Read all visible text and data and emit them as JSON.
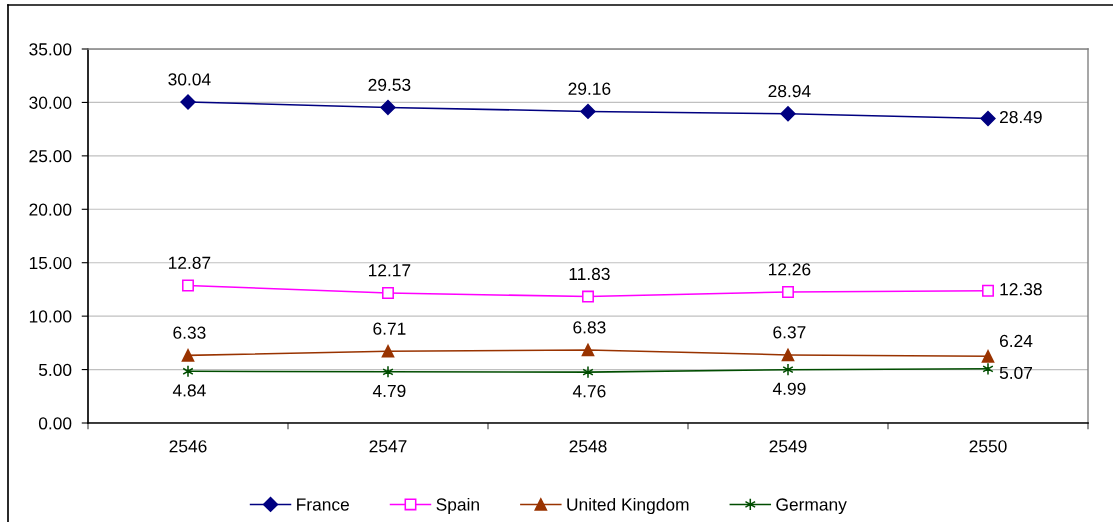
{
  "chart_data": {
    "type": "line",
    "categories": [
      "2546",
      "2547",
      "2548",
      "2549",
      "2550"
    ],
    "ylim": [
      0,
      35
    ],
    "yticks": [
      {
        "value": 0,
        "label": "0.00"
      },
      {
        "value": 5,
        "label": "5.00"
      },
      {
        "value": 10,
        "label": "10.00"
      },
      {
        "value": 15,
        "label": "15.00"
      },
      {
        "value": 20,
        "label": "20.00"
      },
      {
        "value": 25,
        "label": "25.00"
      },
      {
        "value": 30,
        "label": "30.00"
      },
      {
        "value": 35,
        "label": "35.00"
      }
    ],
    "grid": "y",
    "legend": "bottom",
    "data_labels": true,
    "series": [
      {
        "name": "France",
        "color": "#000080",
        "marker": "diamond",
        "values": [
          30.04,
          29.53,
          29.16,
          28.94,
          28.49
        ]
      },
      {
        "name": "Spain",
        "color": "#ff00ff",
        "marker": "square",
        "values": [
          12.87,
          12.17,
          11.83,
          12.26,
          12.38
        ]
      },
      {
        "name": "United Kingdom",
        "color": "#993300",
        "marker": "triangle",
        "values": [
          6.33,
          6.71,
          6.83,
          6.37,
          6.24
        ]
      },
      {
        "name": "Germany",
        "color": "#004d00",
        "marker": "cross",
        "values": [
          4.84,
          4.79,
          4.76,
          4.99,
          5.07
        ]
      }
    ]
  }
}
